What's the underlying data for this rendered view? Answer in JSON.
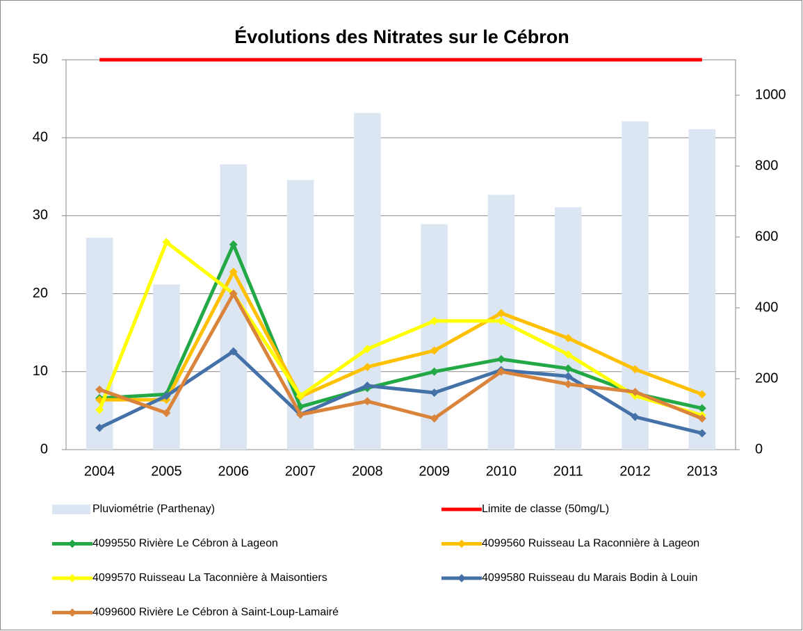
{
  "chart_data": {
    "type": "combo",
    "title": "Évolutions des Nitrates sur le Cébron",
    "categories": [
      "2004",
      "2005",
      "2006",
      "2007",
      "2008",
      "2009",
      "2010",
      "2011",
      "2012",
      "2013"
    ],
    "ylim": [
      0,
      50
    ],
    "yticks": [
      0,
      10,
      20,
      30,
      40,
      50
    ],
    "y2lim": [
      0,
      1100
    ],
    "y2ticks": [
      0,
      200,
      400,
      600,
      800,
      1000
    ],
    "grid": true,
    "legend": "bottom",
    "series": [
      {
        "name": "Pluviométrie (Parthenay)",
        "type": "bar",
        "axis": "y2",
        "color": "#dce6f2",
        "values": [
          598,
          466,
          805,
          761,
          950,
          636,
          719,
          684,
          926,
          904
        ]
      },
      {
        "name": "Limite de classe (50mg/L)",
        "type": "line",
        "color": "#ff0000",
        "values": [
          50,
          50,
          50,
          50,
          50,
          50,
          50,
          50,
          50,
          50
        ]
      },
      {
        "name": "4099550 Rivière Le Cébron à Lageon",
        "type": "line",
        "marker": "diamond",
        "color": "#22a845",
        "values": [
          6.6,
          7.1,
          26.3,
          5.5,
          7.9,
          10,
          11.6,
          10.4,
          7.2,
          5.3
        ]
      },
      {
        "name": "4099560 Ruisseau La Raconnière à Lageon",
        "type": "line",
        "marker": "diamond",
        "color": "#ffc000",
        "values": [
          6.4,
          6.4,
          22.8,
          6.8,
          10.6,
          12.7,
          17.5,
          14.3,
          10.3,
          7.1
        ]
      },
      {
        "name": "4099570 Ruisseau La Taconnière à Maisontiers",
        "type": "line",
        "marker": "diamond",
        "color": "#ffff00",
        "values": [
          5.1,
          26.6,
          20,
          6.9,
          12.9,
          16.5,
          16.5,
          12.2,
          6.9,
          4.4
        ]
      },
      {
        "name": "4099580 Ruisseau du Marais Bodin à Louin",
        "type": "line",
        "marker": "diamond",
        "color": "#4472a8",
        "values": [
          2.8,
          6.9,
          12.6,
          4.5,
          8.2,
          7.3,
          10.2,
          9.4,
          4.2,
          2.1
        ]
      },
      {
        "name": "4099600 Rivière Le Cébron à Saint-Loup-Lamairé",
        "type": "line",
        "marker": "diamond",
        "color": "#d9843a",
        "values": [
          7.7,
          4.7,
          20,
          4.5,
          6.2,
          4,
          10,
          8.4,
          7.4,
          4
        ]
      }
    ]
  }
}
